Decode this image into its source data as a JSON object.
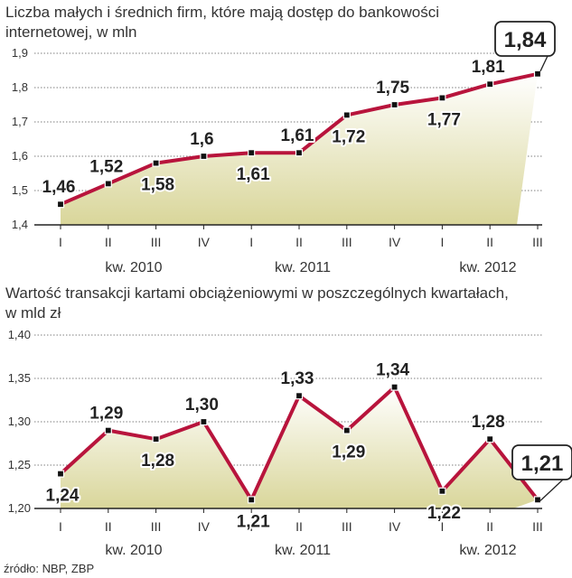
{
  "chart_data": [
    {
      "type": "area",
      "title": "Liczba małych i średnich firm, które mają dostęp do bankowości internetowej, w mln",
      "title_lines": [
        "Liczba małych i średnich firm, które mają dostęp do bankowości",
        "internetowej, w mln"
      ],
      "categories": [
        "I",
        "II",
        "III",
        "IV",
        "I",
        "II",
        "III",
        "IV",
        "I",
        "II",
        "III"
      ],
      "year_labels": [
        "kw. 2010",
        "kw. 2011",
        "kw. 2012"
      ],
      "values": [
        1.46,
        1.52,
        1.58,
        1.6,
        1.61,
        1.61,
        1.72,
        1.75,
        1.77,
        1.81,
        1.84
      ],
      "value_labels": [
        "1,46",
        "1,52",
        "1,58",
        "1,6",
        "1,61",
        "1,61",
        "1,72",
        "1,75",
        "1,77",
        "1,81",
        "1,84"
      ],
      "ylim": [
        1.4,
        1.9
      ],
      "yticks": [
        "1,4",
        "1,5",
        "1,6",
        "1,7",
        "1,8",
        "1,9"
      ],
      "highlight_index": 10,
      "grid": true
    },
    {
      "type": "area",
      "title": "Wartość transakcji kartami obciążeniowymi w poszczególnych kwartałach, w mld zł",
      "title_lines": [
        "Wartość transakcji kartami obciążeniowymi w poszczególnych kwartałach,",
        "w mld zł"
      ],
      "categories": [
        "I",
        "II",
        "III",
        "IV",
        "I",
        "II",
        "III",
        "IV",
        "I",
        "II",
        "III"
      ],
      "year_labels": [
        "kw. 2010",
        "kw. 2011",
        "kw. 2012"
      ],
      "values": [
        1.24,
        1.29,
        1.28,
        1.3,
        1.21,
        1.33,
        1.29,
        1.34,
        1.22,
        1.28,
        1.21
      ],
      "value_labels": [
        "1,24",
        "1,29",
        "1,28",
        "1,30",
        "1,21",
        "1,33",
        "1,29",
        "1,34",
        "1,22",
        "1,28",
        "1,21"
      ],
      "ylim": [
        1.2,
        1.4
      ],
      "yticks": [
        "1,20",
        "1,25",
        "1,30",
        "1,35",
        "1,40"
      ],
      "highlight_index": 10,
      "grid": true
    }
  ],
  "source": "źródło: NBP, ZBP",
  "colors": {
    "line": "#b8143c",
    "fill_top": "#ffffff",
    "fill_bottom": "#d9d69a",
    "grid": "#555555",
    "axis": "#222222"
  }
}
